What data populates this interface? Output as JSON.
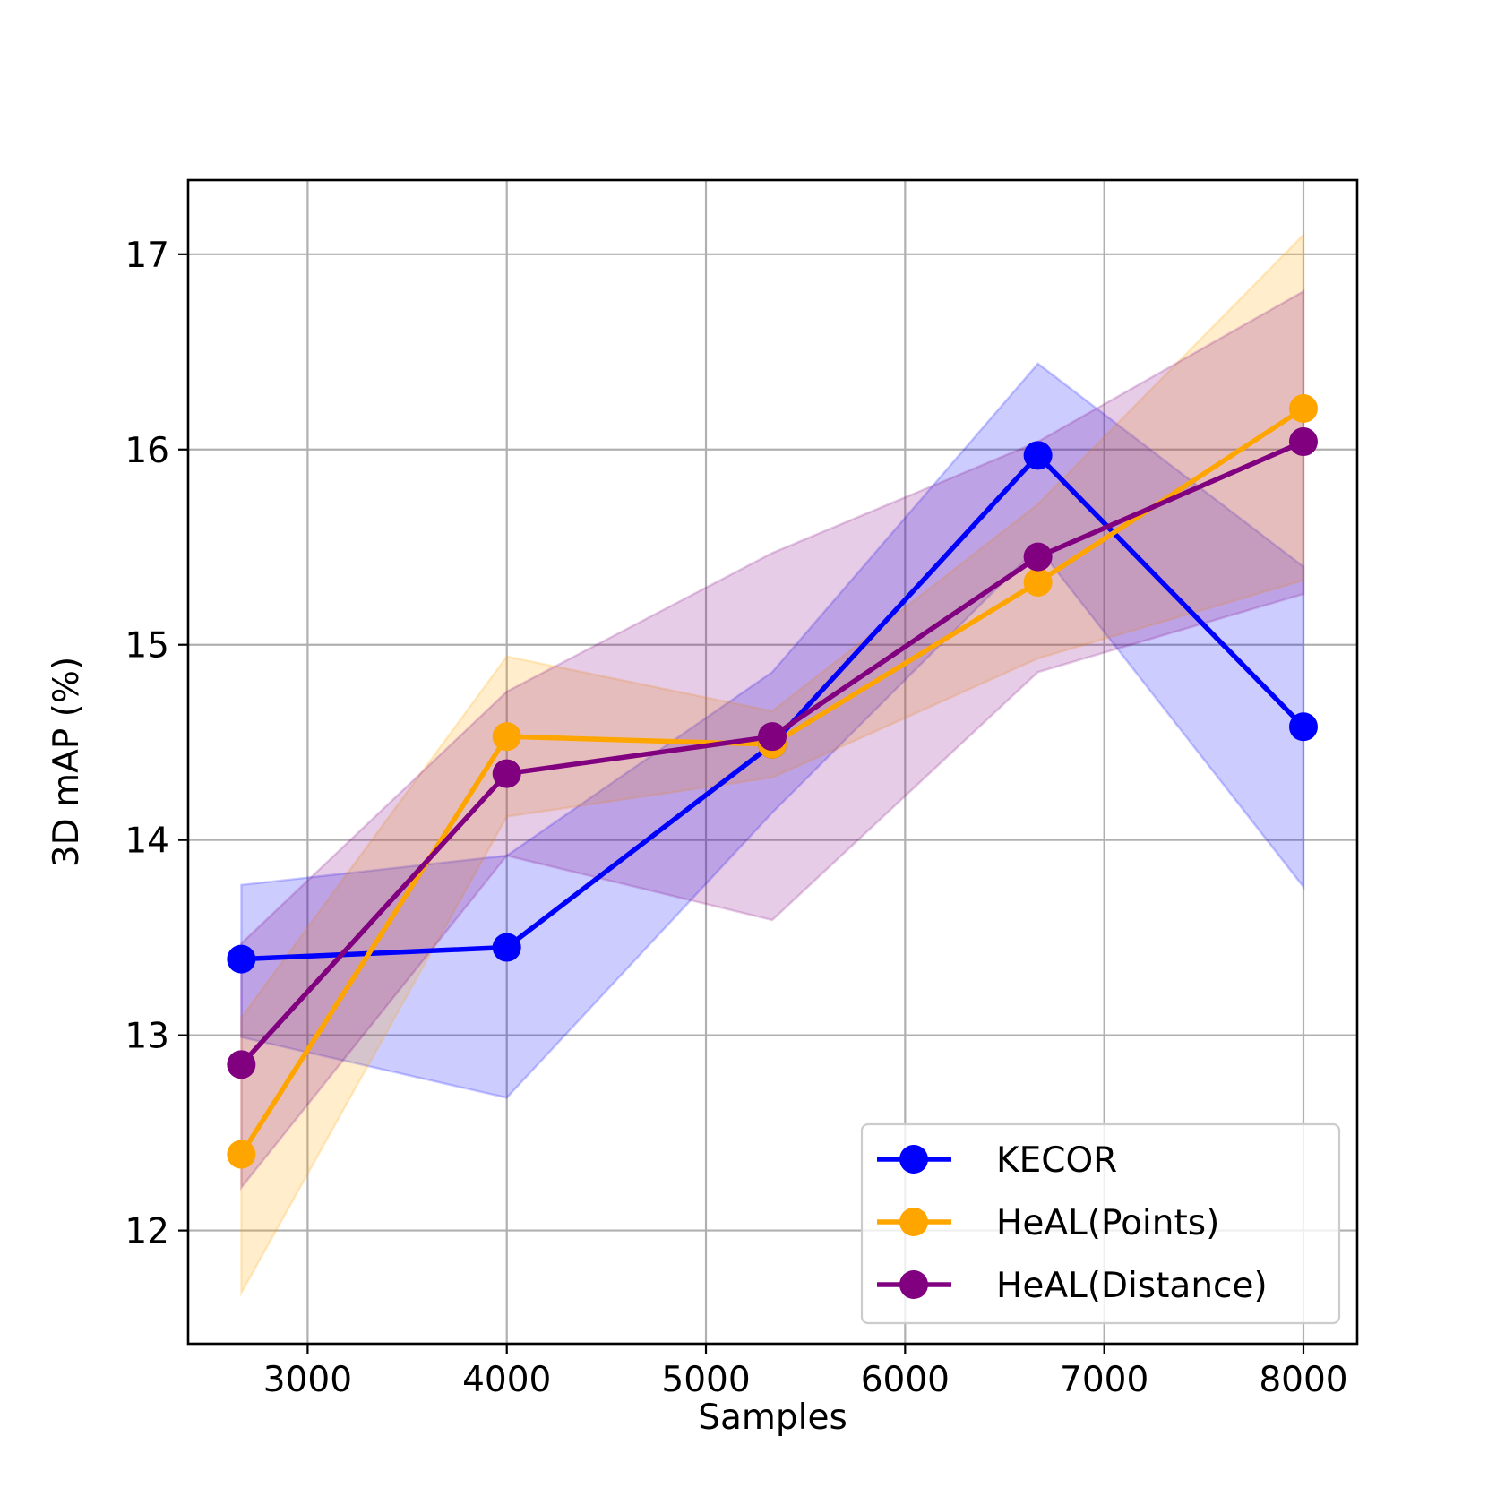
{
  "chart_data": {
    "type": "line",
    "title": "",
    "xlabel": "Samples",
    "ylabel": "3D mAP (%)",
    "x": [
      2667,
      4000,
      5333,
      6667,
      8000
    ],
    "xlim": [
      2400,
      8270
    ],
    "ylim": [
      11.42,
      17.38
    ],
    "x_ticks": [
      3000,
      4000,
      5000,
      6000,
      7000,
      8000
    ],
    "x_tick_labels": [
      "3000",
      "4000",
      "5000",
      "6000",
      "7000",
      "8000"
    ],
    "y_ticks": [
      12,
      13,
      14,
      15,
      16,
      17
    ],
    "y_tick_labels": [
      "12",
      "13",
      "14",
      "15",
      "16",
      "17"
    ],
    "grid": true,
    "legend_position": "lower-right",
    "series": [
      {
        "name": "KECOR",
        "color": "#0000ff",
        "values": [
          13.39,
          13.45,
          14.49,
          15.97,
          14.58
        ],
        "lower": [
          12.99,
          12.68,
          14.14,
          15.5,
          13.76
        ],
        "upper": [
          13.77,
          13.92,
          14.86,
          16.44,
          15.4
        ]
      },
      {
        "name": "HeAL(Points)",
        "color": "#ffa500",
        "values": [
          12.39,
          14.53,
          14.49,
          15.32,
          16.21
        ],
        "lower": [
          11.68,
          14.12,
          14.32,
          14.93,
          15.33
        ],
        "upper": [
          13.09,
          14.94,
          14.66,
          15.72,
          17.1
        ]
      },
      {
        "name": "HeAL(Distance)",
        "color": "#800080",
        "values": [
          12.85,
          14.34,
          14.53,
          15.45,
          16.04
        ],
        "lower": [
          12.22,
          13.92,
          13.59,
          14.86,
          15.26
        ],
        "upper": [
          13.47,
          14.76,
          15.47,
          16.04,
          16.81
        ]
      }
    ]
  }
}
